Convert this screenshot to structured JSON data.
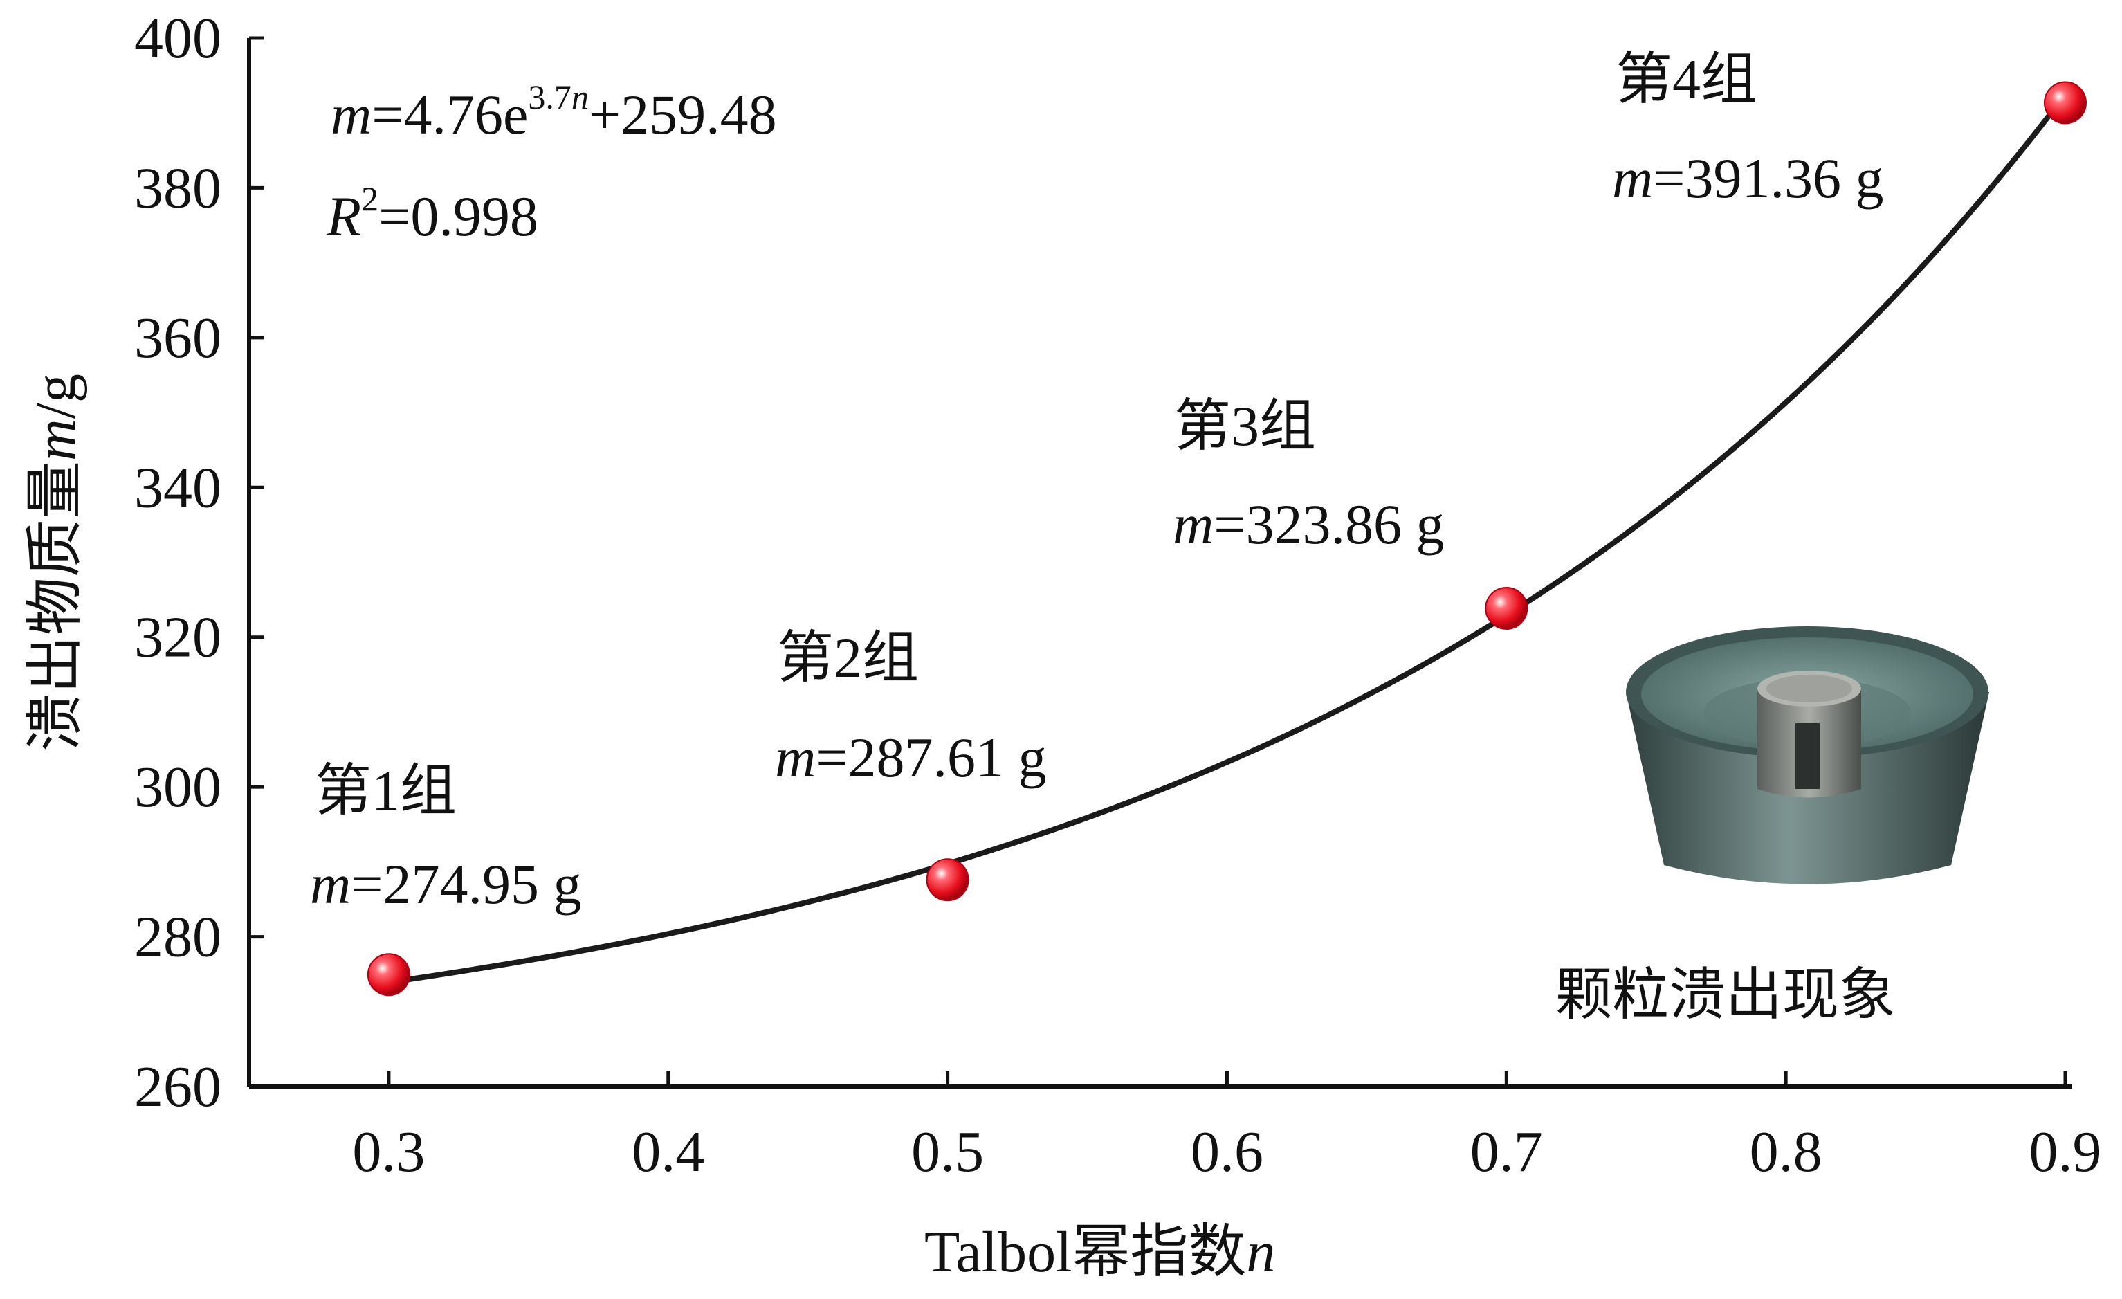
{
  "chart_data": {
    "type": "scatter",
    "xlabel_prefix": "Talbol幂指数",
    "xlabel_var": "n",
    "ylabel_prefix": "溃出物质量",
    "ylabel_var": "m",
    "ylabel_unit": "/g",
    "xlim": [
      0.25,
      0.9
    ],
    "ylim": [
      260,
      400
    ],
    "x_ticks": [
      "0.3",
      "0.4",
      "0.5",
      "0.6",
      "0.7",
      "0.8",
      "0.9"
    ],
    "y_ticks": [
      "260",
      "280",
      "300",
      "320",
      "340",
      "360",
      "380",
      "400"
    ],
    "series": [
      {
        "points": [
          {
            "x": 0.3,
            "y": 274.95
          },
          {
            "x": 0.5,
            "y": 287.61
          },
          {
            "x": 0.7,
            "y": 323.86
          },
          {
            "x": 0.9,
            "y": 391.36
          }
        ]
      }
    ],
    "fit": {
      "a": 4.76,
      "b": 3.7,
      "c": 259.48,
      "x_range": [
        0.3,
        0.9
      ],
      "equation_var": "m",
      "equation_mid": "=4.76e",
      "equation_exp_num": "3.7",
      "equation_exp_var": "n",
      "equation_tail": "+259.48",
      "r2_var": "R",
      "r2_sup": "2",
      "r2_value": "=0.998"
    },
    "point_labels": [
      {
        "group": "第1组",
        "var": "m",
        "value": "=274.95 g"
      },
      {
        "group": "第2组",
        "var": "m",
        "value": "=287.61 g"
      },
      {
        "group": "第3组",
        "var": "m",
        "value": "=323.86 g"
      },
      {
        "group": "第4组",
        "var": "m",
        "value": "=391.36 g"
      }
    ],
    "inset": {
      "caption": "颗粒溃出现象",
      "icon": "bowl-photo-icon"
    },
    "colors": {
      "point": "#e8101e",
      "curve": "#1a1a1a",
      "axis": "#111111"
    },
    "grid": false,
    "legend": "none"
  }
}
